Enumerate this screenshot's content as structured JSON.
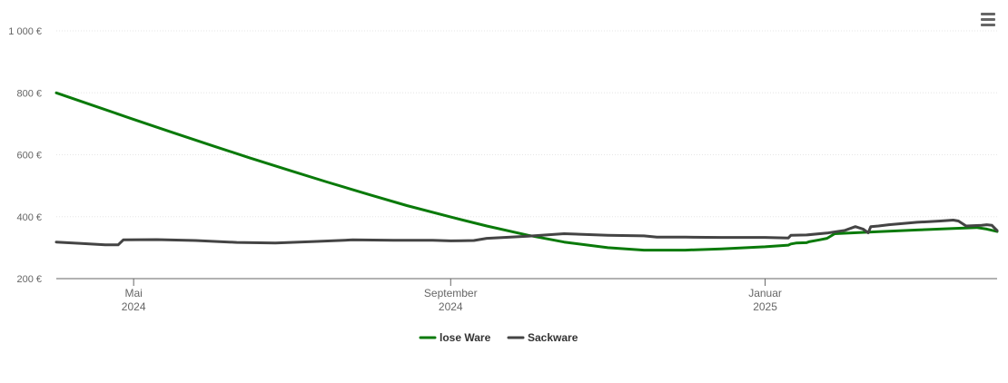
{
  "menu": {
    "icon": "hamburger-menu-icon"
  },
  "chart_data": {
    "type": "line",
    "title": "",
    "xlabel": "",
    "ylabel": "",
    "y_ticks": [
      "200 €",
      "400 €",
      "600 €",
      "800 €",
      "1 000 €"
    ],
    "ylim": [
      200,
      1000
    ],
    "xlim": [
      "2024-04-01",
      "2025-04-01"
    ],
    "x_ticks": [
      {
        "date": "2024-05-01",
        "line1": "Mai",
        "line2": "2024"
      },
      {
        "date": "2024-09-01",
        "line1": "September",
        "line2": "2024"
      },
      {
        "date": "2025-01-01",
        "line1": "Januar",
        "line2": "2025"
      }
    ],
    "grid": true,
    "legend_position": "bottom-center",
    "series": [
      {
        "name": "lose Ware",
        "color": "#0a7a0a",
        "points": [
          [
            "2024-04-01",
            800
          ],
          [
            "2024-04-15",
            760
          ],
          [
            "2024-05-01",
            714
          ],
          [
            "2024-05-15",
            675
          ],
          [
            "2024-06-01",
            628
          ],
          [
            "2024-06-15",
            590
          ],
          [
            "2024-07-01",
            548
          ],
          [
            "2024-07-15",
            512
          ],
          [
            "2024-08-01",
            470
          ],
          [
            "2024-08-15",
            436
          ],
          [
            "2024-09-01",
            399
          ],
          [
            "2024-09-15",
            370
          ],
          [
            "2024-10-01",
            340
          ],
          [
            "2024-10-15",
            318
          ],
          [
            "2024-11-01",
            300
          ],
          [
            "2024-11-15",
            292
          ],
          [
            "2024-12-01",
            292
          ],
          [
            "2024-12-15",
            296
          ],
          [
            "2025-01-01",
            303
          ],
          [
            "2025-01-10",
            308
          ],
          [
            "2025-01-11",
            312
          ],
          [
            "2025-01-13",
            315
          ],
          [
            "2025-01-17",
            316
          ],
          [
            "2025-01-18",
            319
          ],
          [
            "2025-01-22",
            325
          ],
          [
            "2025-01-25",
            330
          ],
          [
            "2025-01-28",
            345
          ],
          [
            "2025-02-15",
            352
          ],
          [
            "2025-03-01",
            357
          ],
          [
            "2025-03-15",
            362
          ],
          [
            "2025-03-24",
            365
          ],
          [
            "2025-03-28",
            360
          ],
          [
            "2025-04-01",
            352
          ]
        ]
      },
      {
        "name": "Sackware",
        "color": "#444444",
        "points": [
          [
            "2024-04-01",
            318
          ],
          [
            "2024-04-10",
            314
          ],
          [
            "2024-04-20",
            309
          ],
          [
            "2024-04-25",
            309
          ],
          [
            "2024-04-27",
            325
          ],
          [
            "2024-05-10",
            326
          ],
          [
            "2024-05-25",
            323
          ],
          [
            "2024-06-10",
            317
          ],
          [
            "2024-06-25",
            315
          ],
          [
            "2024-07-10",
            320
          ],
          [
            "2024-07-25",
            325
          ],
          [
            "2024-08-10",
            324
          ],
          [
            "2024-08-25",
            324
          ],
          [
            "2024-09-01",
            322
          ],
          [
            "2024-09-10",
            323
          ],
          [
            "2024-09-15",
            330
          ],
          [
            "2024-10-01",
            337
          ],
          [
            "2024-10-15",
            345
          ],
          [
            "2024-11-01",
            340
          ],
          [
            "2024-11-15",
            338
          ],
          [
            "2024-11-20",
            334
          ],
          [
            "2024-12-01",
            334
          ],
          [
            "2024-12-15",
            333
          ],
          [
            "2025-01-01",
            333
          ],
          [
            "2025-01-10",
            331
          ],
          [
            "2025-01-11",
            340
          ],
          [
            "2025-01-17",
            341
          ],
          [
            "2025-01-25",
            347
          ],
          [
            "2025-02-01",
            356
          ],
          [
            "2025-02-05",
            368
          ],
          [
            "2025-02-08",
            360
          ],
          [
            "2025-02-10",
            348
          ],
          [
            "2025-02-11",
            368
          ],
          [
            "2025-02-14",
            370
          ],
          [
            "2025-02-18",
            374
          ],
          [
            "2025-03-01",
            382
          ],
          [
            "2025-03-10",
            386
          ],
          [
            "2025-03-15",
            389
          ],
          [
            "2025-03-17",
            386
          ],
          [
            "2025-03-20",
            370
          ],
          [
            "2025-03-26",
            372
          ],
          [
            "2025-03-28",
            374
          ],
          [
            "2025-03-30",
            372
          ],
          [
            "2025-04-01",
            355
          ]
        ]
      }
    ]
  }
}
